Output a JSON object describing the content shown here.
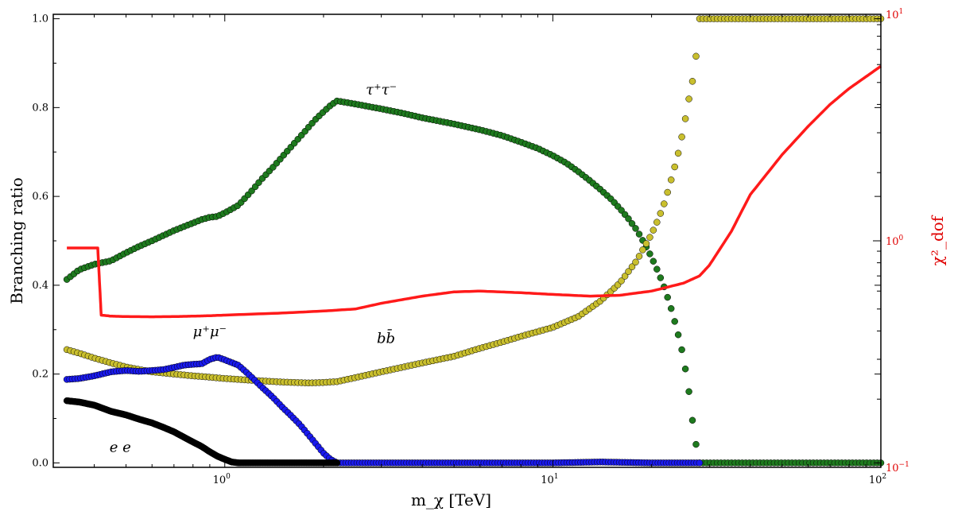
{
  "chart_data": {
    "type": "scatter",
    "xlabel": "m_χ [TeV]",
    "ylabel": "Branching ratio",
    "y2label": "χ²_dof",
    "xscale": "log",
    "xlim": [
      0.3,
      100
    ],
    "ylim": [
      -0.01,
      1.01
    ],
    "y2scale": "log",
    "y2lim": [
      0.1,
      10
    ],
    "x_ticks": [
      {
        "value": 1,
        "base": "10",
        "exp": "0"
      },
      {
        "value": 10,
        "base": "10",
        "exp": "1"
      },
      {
        "value": 100,
        "base": "10",
        "exp": "2"
      }
    ],
    "y_ticks": [
      "0.0",
      "0.2",
      "0.4",
      "0.6",
      "0.8",
      "1.0"
    ],
    "y2_ticks": [
      {
        "value": 0.1,
        "base": "10",
        "exp": "−1"
      },
      {
        "value": 1,
        "base": "10",
        "exp": "0"
      },
      {
        "value": 10,
        "base": "10",
        "exp": "1"
      }
    ],
    "annotations": [
      {
        "text": "τ⁺τ⁻",
        "x": 3.0,
        "y": 0.83
      },
      {
        "text": "μ⁺μ⁻",
        "x": 0.9,
        "y": 0.285
      },
      {
        "text": "bb̄",
        "x": 3.1,
        "y": 0.27
      },
      {
        "text": "e   e",
        "x": 0.48,
        "y": 0.025
      }
    ],
    "series": [
      {
        "color": "#1e7a1e",
        "points": [
          [
            0.33,
            0.413
          ],
          [
            0.36,
            0.435
          ],
          [
            0.4,
            0.447
          ],
          [
            0.45,
            0.455
          ],
          [
            0.5,
            0.473
          ],
          [
            0.55,
            0.488
          ],
          [
            0.6,
            0.5
          ],
          [
            0.65,
            0.512
          ],
          [
            0.7,
            0.523
          ],
          [
            0.75,
            0.532
          ],
          [
            0.8,
            0.54
          ],
          [
            0.85,
            0.548
          ],
          [
            0.9,
            0.553
          ],
          [
            0.95,
            0.555
          ],
          [
            1.0,
            0.563
          ],
          [
            1.1,
            0.58
          ],
          [
            1.2,
            0.61
          ],
          [
            1.3,
            0.64
          ],
          [
            1.4,
            0.665
          ],
          [
            1.5,
            0.69
          ],
          [
            1.7,
            0.735
          ],
          [
            1.9,
            0.775
          ],
          [
            2.1,
            0.805
          ],
          [
            2.2,
            0.815
          ],
          [
            2.5,
            0.808
          ],
          [
            3.0,
            0.797
          ],
          [
            3.5,
            0.787
          ],
          [
            4.0,
            0.777
          ],
          [
            5.0,
            0.763
          ],
          [
            6.0,
            0.75
          ],
          [
            7.0,
            0.737
          ],
          [
            8.0,
            0.722
          ],
          [
            9.0,
            0.708
          ],
          [
            10.0,
            0.692
          ],
          [
            11.0,
            0.675
          ],
          [
            12.0,
            0.655
          ],
          [
            13.0,
            0.635
          ],
          [
            14.0,
            0.615
          ],
          [
            15.0,
            0.595
          ],
          [
            16.0,
            0.573
          ],
          [
            17.0,
            0.55
          ],
          [
            18.0,
            0.525
          ],
          [
            19.0,
            0.495
          ],
          [
            20.0,
            0.463
          ],
          [
            21.0,
            0.428
          ],
          [
            22.0,
            0.39
          ],
          [
            23.0,
            0.345
          ],
          [
            24.0,
            0.295
          ],
          [
            25.0,
            0.24
          ],
          [
            26.0,
            0.16
          ],
          [
            27.0,
            0.062
          ],
          [
            28.0,
            0.0
          ],
          [
            35.0,
            0.0
          ],
          [
            50.0,
            0.0
          ],
          [
            70.0,
            0.0
          ],
          [
            100.0,
            0.0
          ]
        ]
      },
      {
        "color": "#c9bf2e",
        "points": [
          [
            0.33,
            0.255
          ],
          [
            0.36,
            0.247
          ],
          [
            0.4,
            0.236
          ],
          [
            0.45,
            0.225
          ],
          [
            0.5,
            0.216
          ],
          [
            0.55,
            0.21
          ],
          [
            0.6,
            0.205
          ],
          [
            0.7,
            0.2
          ],
          [
            0.8,
            0.196
          ],
          [
            0.9,
            0.193
          ],
          [
            1.0,
            0.19
          ],
          [
            1.2,
            0.186
          ],
          [
            1.5,
            0.182
          ],
          [
            1.8,
            0.18
          ],
          [
            2.0,
            0.181
          ],
          [
            2.2,
            0.183
          ],
          [
            2.5,
            0.192
          ],
          [
            3.0,
            0.205
          ],
          [
            4.0,
            0.225
          ],
          [
            5.0,
            0.24
          ],
          [
            6.0,
            0.258
          ],
          [
            7.0,
            0.272
          ],
          [
            8.0,
            0.285
          ],
          [
            10.0,
            0.305
          ],
          [
            12.0,
            0.33
          ],
          [
            14.0,
            0.365
          ],
          [
            16.0,
            0.405
          ],
          [
            18.0,
            0.455
          ],
          [
            20.0,
            0.515
          ],
          [
            21.0,
            0.55
          ],
          [
            22.0,
            0.59
          ],
          [
            23.0,
            0.64
          ],
          [
            24.0,
            0.69
          ],
          [
            25.0,
            0.75
          ],
          [
            26.0,
            0.82
          ],
          [
            27.0,
            0.88
          ],
          [
            27.5,
            0.935
          ],
          [
            28.0,
            1.0
          ],
          [
            35.0,
            1.0
          ],
          [
            50.0,
            1.0
          ],
          [
            70.0,
            1.0
          ],
          [
            100.0,
            1.0
          ]
        ]
      },
      {
        "color": "#1a1aee",
        "points": [
          [
            0.33,
            0.188
          ],
          [
            0.36,
            0.19
          ],
          [
            0.4,
            0.196
          ],
          [
            0.45,
            0.205
          ],
          [
            0.5,
            0.208
          ],
          [
            0.55,
            0.206
          ],
          [
            0.6,
            0.208
          ],
          [
            0.65,
            0.21
          ],
          [
            0.7,
            0.215
          ],
          [
            0.75,
            0.22
          ],
          [
            0.8,
            0.222
          ],
          [
            0.85,
            0.223
          ],
          [
            0.9,
            0.233
          ],
          [
            0.95,
            0.238
          ],
          [
            1.0,
            0.232
          ],
          [
            1.1,
            0.22
          ],
          [
            1.2,
            0.195
          ],
          [
            1.3,
            0.17
          ],
          [
            1.4,
            0.148
          ],
          [
            1.5,
            0.125
          ],
          [
            1.6,
            0.105
          ],
          [
            1.7,
            0.085
          ],
          [
            1.8,
            0.063
          ],
          [
            1.9,
            0.042
          ],
          [
            2.0,
            0.022
          ],
          [
            2.1,
            0.008
          ],
          [
            2.2,
            0.0
          ],
          [
            5.0,
            0.0
          ],
          [
            10.0,
            0.0
          ],
          [
            14.0,
            0.002
          ],
          [
            20.0,
            0.0
          ],
          [
            28.0,
            0.0
          ]
        ]
      },
      {
        "color": "#000000",
        "points": [
          [
            0.33,
            0.14
          ],
          [
            0.36,
            0.137
          ],
          [
            0.4,
            0.13
          ],
          [
            0.45,
            0.116
          ],
          [
            0.5,
            0.108
          ],
          [
            0.55,
            0.098
          ],
          [
            0.6,
            0.09
          ],
          [
            0.65,
            0.08
          ],
          [
            0.7,
            0.07
          ],
          [
            0.75,
            0.058
          ],
          [
            0.8,
            0.047
          ],
          [
            0.85,
            0.037
          ],
          [
            0.9,
            0.025
          ],
          [
            0.95,
            0.015
          ],
          [
            1.0,
            0.008
          ],
          [
            1.05,
            0.002
          ],
          [
            1.1,
            0.0
          ],
          [
            1.5,
            0.0
          ],
          [
            2.0,
            0.0
          ],
          [
            2.2,
            0.0
          ]
        ]
      },
      {
        "color": "#ff1a1a",
        "axis": "right",
        "points": [
          [
            0.33,
            0.93
          ],
          [
            0.4,
            0.93
          ],
          [
            0.41,
            0.93
          ],
          [
            0.42,
            0.47
          ],
          [
            0.45,
            0.465
          ],
          [
            0.5,
            0.463
          ],
          [
            0.6,
            0.462
          ],
          [
            0.7,
            0.463
          ],
          [
            0.8,
            0.465
          ],
          [
            0.9,
            0.467
          ],
          [
            1.0,
            0.47
          ],
          [
            1.5,
            0.48
          ],
          [
            2.0,
            0.49
          ],
          [
            2.5,
            0.5
          ],
          [
            3.0,
            0.53
          ],
          [
            4.0,
            0.57
          ],
          [
            5.0,
            0.595
          ],
          [
            6.0,
            0.6
          ],
          [
            8.0,
            0.59
          ],
          [
            10.0,
            0.58
          ],
          [
            13.0,
            0.57
          ],
          [
            16.0,
            0.575
          ],
          [
            20.0,
            0.6
          ],
          [
            25.0,
            0.65
          ],
          [
            28.0,
            0.7
          ],
          [
            30.0,
            0.78
          ],
          [
            35.0,
            1.1
          ],
          [
            40.0,
            1.6
          ],
          [
            50.0,
            2.4
          ],
          [
            60.0,
            3.2
          ],
          [
            70.0,
            4.0
          ],
          [
            80.0,
            4.7
          ],
          [
            90.0,
            5.3
          ],
          [
            100.0,
            5.9
          ]
        ]
      }
    ]
  }
}
